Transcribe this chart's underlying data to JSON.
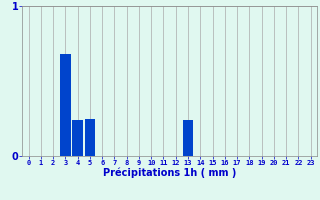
{
  "hours": [
    0,
    1,
    2,
    3,
    4,
    5,
    6,
    7,
    8,
    9,
    10,
    11,
    12,
    13,
    14,
    15,
    16,
    17,
    18,
    19,
    20,
    21,
    22,
    23
  ],
  "values": [
    0,
    0,
    0,
    0.68,
    0.24,
    0.25,
    0,
    0,
    0,
    0,
    0,
    0,
    0,
    0.24,
    0,
    0,
    0,
    0,
    0,
    0,
    0,
    0,
    0,
    0
  ],
  "bar_color": "#0044cc",
  "background_color": "#e0f8f0",
  "grid_color": "#aaaaaa",
  "text_color": "#0000cc",
  "xlabel": "Précipitations 1h ( mm )",
  "ylim": [
    0,
    1.0
  ],
  "yticks": [
    0,
    1
  ],
  "bar_width": 0.85
}
